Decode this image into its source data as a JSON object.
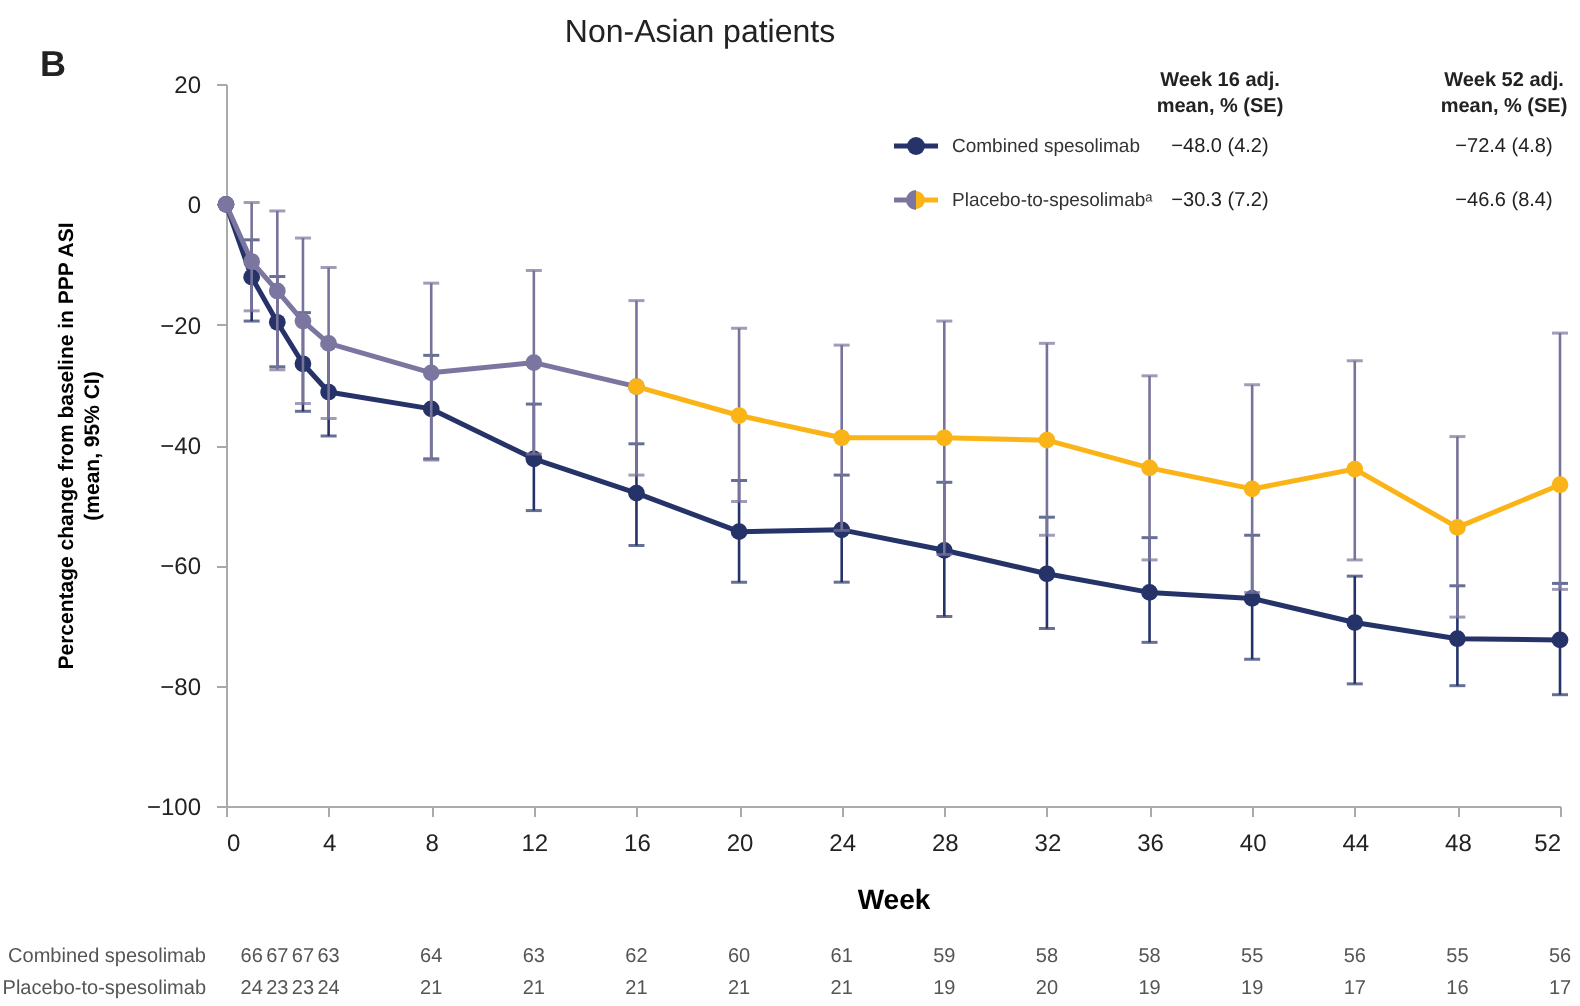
{
  "chart_data": {
    "type": "line",
    "title": "Non-Asian patients",
    "xlabel": "Week",
    "ylabel": "Percentage change from baseline in PPP ASI\n(mean, 95% CI)",
    "x": [
      0,
      1,
      2,
      3,
      4,
      8,
      12,
      16,
      20,
      24,
      28,
      32,
      36,
      40,
      44,
      48,
      52
    ],
    "xlim": [
      0,
      52
    ],
    "xticks": [
      0,
      4,
      8,
      12,
      16,
      20,
      24,
      28,
      32,
      36,
      40,
      44,
      48,
      52
    ],
    "ylim": [
      -100,
      20
    ],
    "yticks": [
      20,
      0,
      -20,
      -40,
      -60,
      -80,
      -100
    ],
    "grid": false,
    "marker": "circle",
    "line_style": "solid",
    "legend": "top right",
    "series": [
      {
        "name": "Combined spesolimab",
        "color": "#253368",
        "values": [
          0,
          -12.1,
          -19.6,
          -26.5,
          -31.2,
          -34,
          -42.3,
          -48.0,
          -54.4,
          -54.1,
          -57.5,
          -61.4,
          -64.5,
          -65.5,
          -69.5,
          -72.2,
          -72.4
        ],
        "errors": [
          null,
          [
            -19.4,
            -5.9
          ],
          [
            -27,
            -12
          ],
          [
            -34.4,
            -18
          ],
          [
            -38.5,
            -23.5
          ],
          [
            -42.3,
            -25.1
          ],
          [
            -50.9,
            -33.2
          ],
          [
            -56.7,
            -39.8
          ],
          [
            -62.8,
            -45.9
          ],
          [
            -62.8,
            -45
          ],
          [
            -68.5,
            -46.2
          ],
          [
            -70.5,
            -52
          ],
          [
            -72.8,
            -55.4
          ],
          [
            -75.6,
            -55
          ],
          [
            -79.7,
            -61.8
          ],
          [
            -80,
            -63.4
          ],
          [
            -81.5,
            -63
          ]
        ]
      },
      {
        "color": "#7b76a0",
        "x": [
          0,
          1,
          2,
          3,
          4,
          8,
          12,
          16
        ],
        "values": [
          0,
          -9.5,
          -14.4,
          -19.4,
          -23.1,
          -28,
          -26.3,
          -30.3
        ],
        "errors": [
          null,
          [
            -17.7,
            0.3
          ],
          [
            -27.5,
            -1.1
          ],
          [
            -33.1,
            -5.6
          ],
          [
            -35.6,
            -10.5
          ],
          [
            -42.5,
            -13.1
          ],
          [
            -41.5,
            -11
          ],
          null
        ]
      },
      {
        "name": "Placebo-to-spesolimabᵃ",
        "color": "#fbb418",
        "x": [
          16,
          20,
          24,
          28,
          32,
          36,
          40,
          44,
          48,
          52
        ],
        "values": [
          -30.3,
          -35.1,
          -38.8,
          -38.8,
          -39.2,
          -43.8,
          -47.3,
          -44,
          -53.7,
          -46.6
        ],
        "errors": [
          [
            -45,
            -16
          ],
          [
            -49.4,
            -20.6
          ],
          [
            -54.2,
            -23.4
          ],
          [
            -58.2,
            -19.4
          ],
          [
            -55,
            -23.1
          ],
          [
            -59.1,
            -28.5
          ],
          [
            -64.5,
            -30
          ],
          [
            -59.1,
            -26
          ],
          [
            -68.6,
            -38.6
          ],
          [
            -64,
            -21.4
          ]
        ]
      }
    ],
    "annotations": [
      "B",
      "Week 16 adj.\nmean, % (SE)",
      "Week 52 adj.\nmean, % (SE)",
      "−48.0 (4.2)",
      "−72.4 (4.8)",
      "−30.3 (7.2)",
      "−46.6 (8.4)",
      "Combined spesolimab",
      "66 67 67 63 64 63 62 60 61 59 58 58 55 56 55 56",
      "Placebo-to-spesolimab",
      "24 23 23 24 21 21 21 21 21 19 20 19 19 17 16 17"
    ]
  }
}
